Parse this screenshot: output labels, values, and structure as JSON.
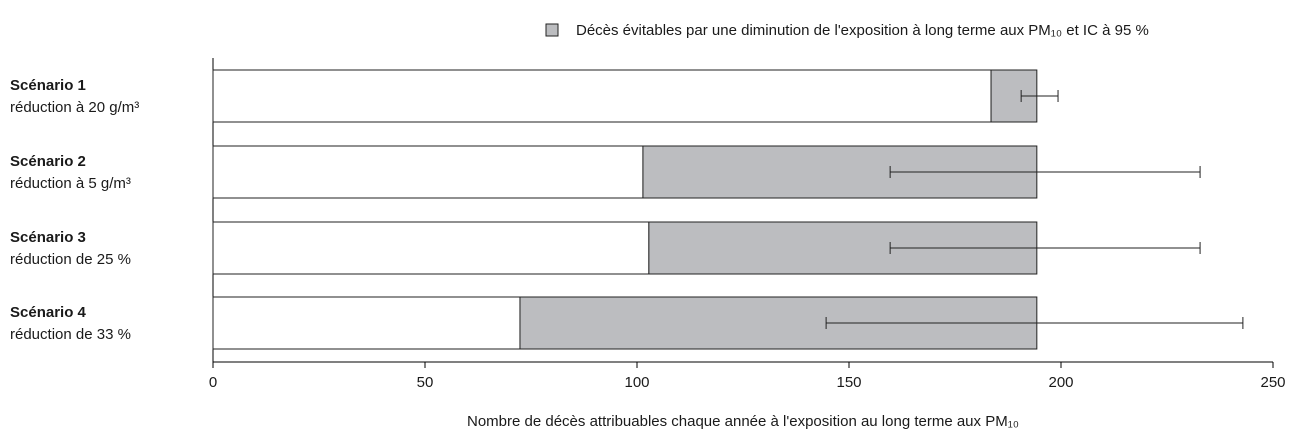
{
  "chart_data": {
    "type": "stacked-barh",
    "categories": [
      {
        "title": "Scénario 1",
        "subtitle": "réduction à 20 g/m³"
      },
      {
        "title": "Scénario 2",
        "subtitle": "réduction à 5 g/m³"
      },
      {
        "title": "Scénario 3",
        "subtitle": "réduction de 25 %"
      },
      {
        "title": "Scénario 4",
        "subtitle": "réduction de 33 %"
      }
    ],
    "series": [
      {
        "color": "#ffffff",
        "values": [
          183.5,
          101.4,
          102.8,
          72.4
        ]
      },
      {
        "name": "Décès évitables par une diminution de l'exposition à long terme aux PM₁₀ et IC à 95 %",
        "color": "#bcbdc0",
        "values": [
          10.8,
          92.9,
          91.5,
          121.9
        ],
        "ci_low": [
          190.6,
          159.7,
          159.7,
          144.6
        ],
        "ci_high": [
          199.3,
          232.8,
          232.8,
          242.9
        ]
      }
    ],
    "xlabel": "Nombre de décès attribuables chaque année à l'exposition au long terme aux PM₁₀",
    "xlim": [
      0,
      250
    ],
    "xticks": [
      0,
      50,
      100,
      150,
      200,
      250
    ],
    "legend": "top-right"
  }
}
